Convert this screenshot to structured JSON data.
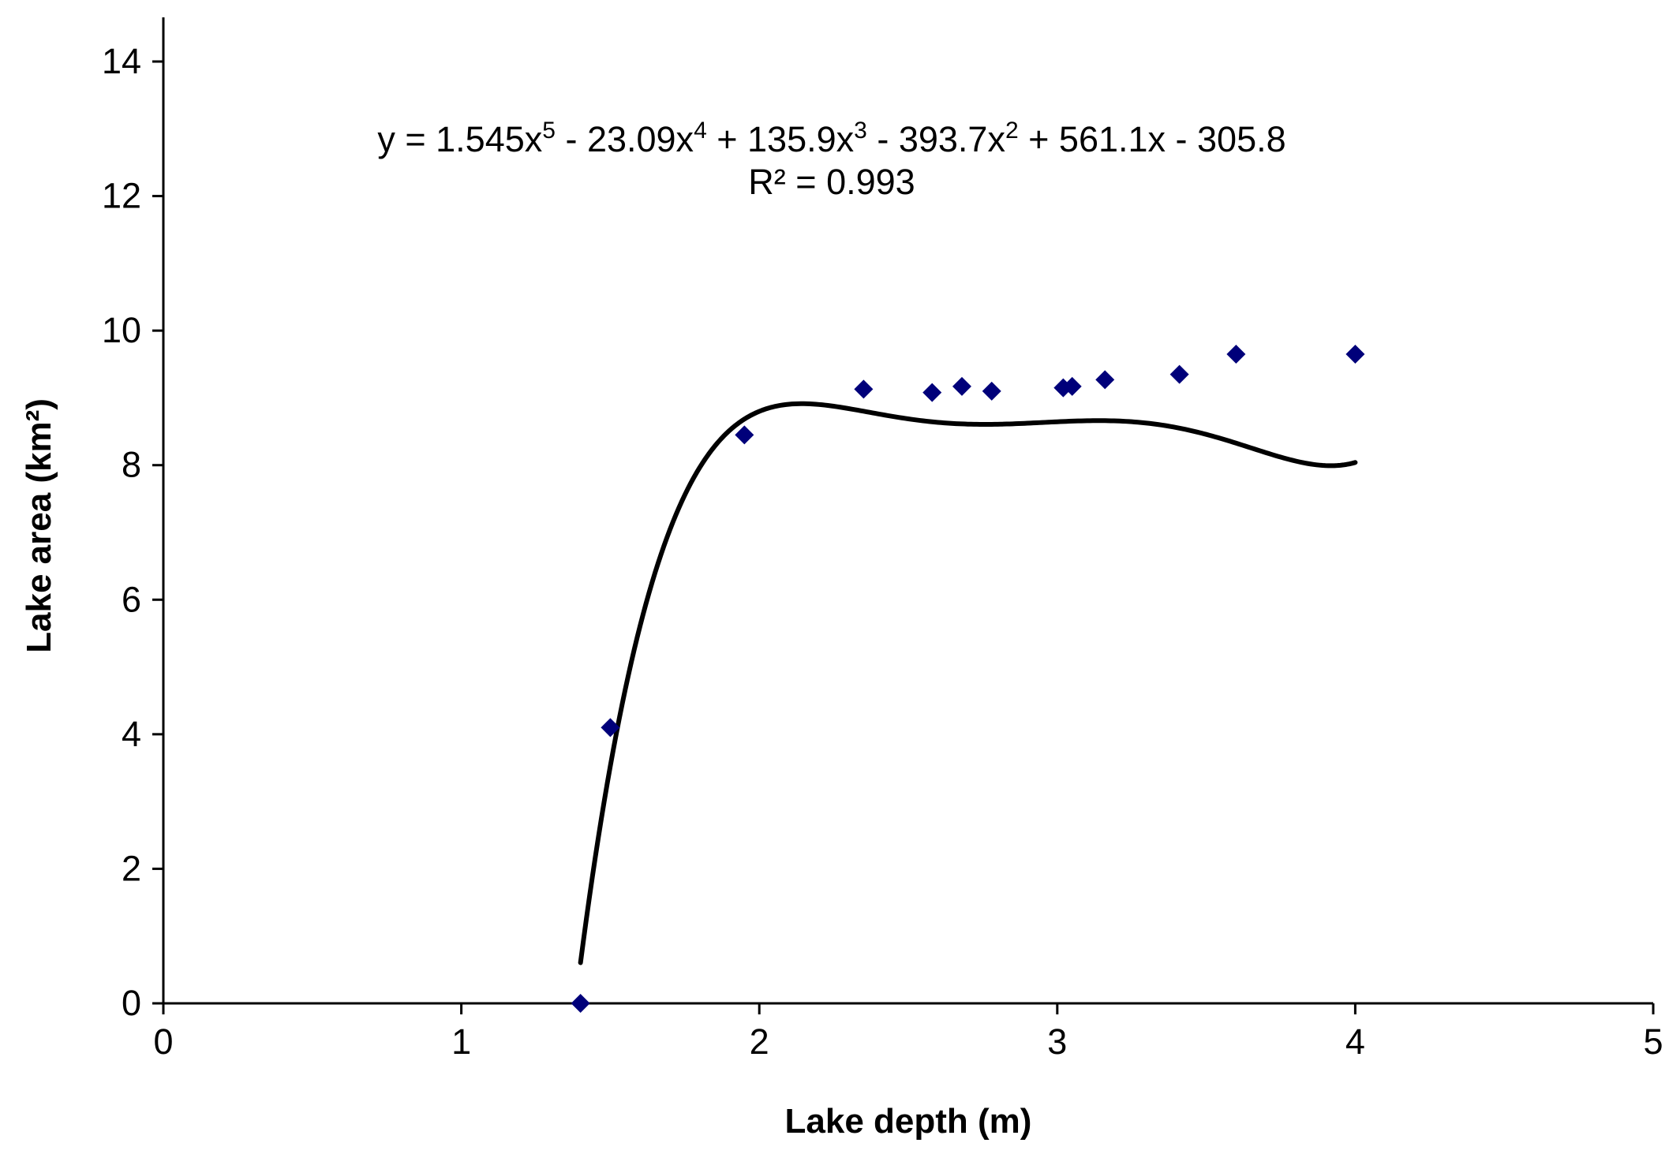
{
  "chart_data": {
    "type": "scatter",
    "xlabel": "Lake depth (m)",
    "ylabel": "Lake area (km²)",
    "xlim": [
      0,
      5
    ],
    "ylim": [
      0,
      14
    ],
    "x_ticks": [
      "0",
      "1",
      "2",
      "3",
      "4",
      "5"
    ],
    "y_ticks": [
      "0",
      "2",
      "4",
      "6",
      "8",
      "10",
      "12",
      "14"
    ],
    "grid": false,
    "legend": "none",
    "series": [
      {
        "marker": "diamond",
        "color": "#00007a",
        "points": [
          {
            "x": 1.4,
            "y": 0.0
          },
          {
            "x": 1.5,
            "y": 4.1
          },
          {
            "x": 1.95,
            "y": 8.45
          },
          {
            "x": 2.35,
            "y": 9.13
          },
          {
            "x": 2.58,
            "y": 9.08
          },
          {
            "x": 2.68,
            "y": 9.17
          },
          {
            "x": 2.78,
            "y": 9.1
          },
          {
            "x": 3.02,
            "y": 9.15
          },
          {
            "x": 3.05,
            "y": 9.17
          },
          {
            "x": 3.16,
            "y": 9.27
          },
          {
            "x": 3.41,
            "y": 9.35
          },
          {
            "x": 3.6,
            "y": 9.65
          },
          {
            "x": 4.0,
            "y": 9.65
          }
        ]
      }
    ],
    "trendline": {
      "type": "polynomial",
      "order": 5,
      "coefficients": [
        1.545,
        -23.09,
        135.9,
        -393.7,
        561.1,
        -305.8
      ],
      "x_range": [
        1.4,
        4.0
      ],
      "color": "#000000"
    },
    "annotations": {
      "equation_parts": {
        "y_eq": "y = 1.545x",
        "e5": "5",
        "t4": " - 23.09x",
        "e4": "4",
        "t3": " + 135.9x",
        "e3": "3",
        "t2": " - 393.7x",
        "e2": "2",
        "t1": " + 561.1x - 305.8"
      },
      "r_squared": "R² = 0.993"
    }
  }
}
